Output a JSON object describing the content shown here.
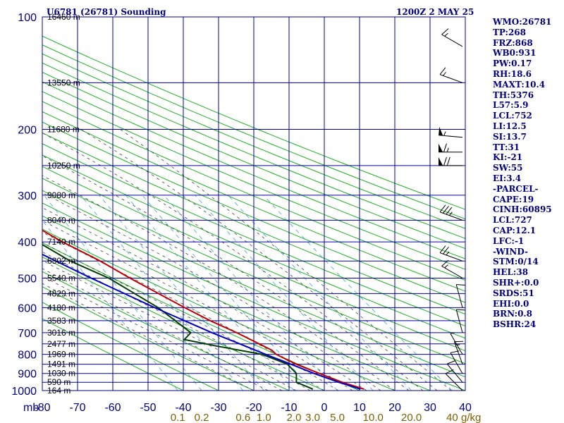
{
  "chart_data": {
    "type": "line",
    "title": "U6781 (26781) Sounding",
    "time_label": "1200Z  2 MAY 25",
    "x_axis": {
      "unit_label": "mb",
      "ticks": [
        -80,
        -70,
        -60,
        -50,
        -40,
        -30,
        -20,
        -10,
        0,
        10,
        20,
        30,
        40
      ],
      "tick_labels": [
        "-80",
        "-70",
        "-60",
        "-50",
        "-40",
        "-30",
        "-20",
        "-10",
        "0",
        "10",
        "20",
        "30",
        "40"
      ],
      "range": [
        -80,
        40
      ]
    },
    "y_axis": {
      "scale": "log",
      "range": [
        100,
        1000
      ],
      "ticks": [
        100,
        200,
        300,
        400,
        500,
        600,
        700,
        800,
        900,
        1000
      ],
      "tick_labels": [
        "100",
        "200",
        "300",
        "400",
        "500",
        "600",
        "700",
        "800",
        "900",
        "1000"
      ]
    },
    "height_labels": [
      {
        "p": 100,
        "label": "16460 m"
      },
      {
        "p": 150,
        "label": "13550 m"
      },
      {
        "p": 200,
        "label": "11680 m"
      },
      {
        "p": 250,
        "label": "10250 m"
      },
      {
        "p": 300,
        "label": "9080 m"
      },
      {
        "p": 350,
        "label": "8040 m"
      },
      {
        "p": 400,
        "label": "7140 m"
      },
      {
        "p": 450,
        "label": "6302 m"
      },
      {
        "p": 500,
        "label": "5540 m"
      },
      {
        "p": 550,
        "label": "4829 m"
      },
      {
        "p": 600,
        "label": "4180 m"
      },
      {
        "p": 650,
        "label": "3583 m"
      },
      {
        "p": 700,
        "label": "3016 m"
      },
      {
        "p": 750,
        "label": "2477 m"
      },
      {
        "p": 800,
        "label": "1969 m"
      },
      {
        "p": 850,
        "label": "1491 m"
      },
      {
        "p": 900,
        "label": "1030 m"
      },
      {
        "p": 950,
        "label": "590 m"
      },
      {
        "p": 1000,
        "label": "164 m"
      }
    ],
    "mixing_ratio_labels": [
      {
        "w": 0.1,
        "label": "0.1"
      },
      {
        "w": 0.2,
        "label": "0.2"
      },
      {
        "w": 0.6,
        "label": "0.6"
      },
      {
        "w": 1.0,
        "label": "1.0"
      },
      {
        "w": 2.0,
        "label": "2.0"
      },
      {
        "w": 3.0,
        "label": "3.0"
      },
      {
        "w": 5.0,
        "label": "5.0"
      },
      {
        "w": 10.0,
        "label": "10.0"
      },
      {
        "w": 20.0,
        "label": "20.0"
      },
      {
        "w": 40.0,
        "label": "40"
      }
    ],
    "mixing_ratio_unit": "g/kg",
    "series": [
      {
        "key": "temperature",
        "color": "#c00000",
        "points": [
          {
            "p": 991,
            "t": 11.5
          },
          {
            "p": 950,
            "t": 6.5
          },
          {
            "p": 900,
            "t": 1.5
          },
          {
            "p": 850,
            "t": -3.5
          },
          {
            "p": 800,
            "t": -7.5
          },
          {
            "p": 780,
            "t": -8.0
          },
          {
            "p": 750,
            "t": -10.5
          },
          {
            "p": 700,
            "t": -15.0
          },
          {
            "p": 650,
            "t": -20.5
          },
          {
            "p": 600,
            "t": -25.5
          },
          {
            "p": 550,
            "t": -30.5
          },
          {
            "p": 500,
            "t": -36.0
          },
          {
            "p": 450,
            "t": -41.5
          },
          {
            "p": 400,
            "t": -49.0
          },
          {
            "p": 350,
            "t": -56.0
          },
          {
            "p": 300,
            "t": -62.0
          },
          {
            "p": 265,
            "t": -63.5
          },
          {
            "p": 250,
            "t": -62.0
          },
          {
            "p": 230,
            "t": -59.0
          },
          {
            "p": 200,
            "t": -54.0
          },
          {
            "p": 170,
            "t": -48.0
          },
          {
            "p": 150,
            "t": -46.0
          },
          {
            "p": 120,
            "t": -43.5
          },
          {
            "p": 100,
            "t": -40.5
          }
        ]
      },
      {
        "key": "dewpoint",
        "color": "#004000",
        "points": [
          {
            "p": 991,
            "t": -3.0
          },
          {
            "p": 950,
            "t": -6.5
          },
          {
            "p": 900,
            "t": -5.0
          },
          {
            "p": 850,
            "t": -6.0
          },
          {
            "p": 800,
            "t": -11.5
          },
          {
            "p": 760,
            "t": -23.0
          },
          {
            "p": 730,
            "t": -31.0
          },
          {
            "p": 700,
            "t": -28.0
          },
          {
            "p": 600,
            "t": -33.0
          },
          {
            "p": 500,
            "t": -42.0
          },
          {
            "p": 450,
            "t": -50.0
          },
          {
            "p": 400,
            "t": -56.0
          },
          {
            "p": 300,
            "t": -69.0
          },
          {
            "p": 270,
            "t": -73.0
          },
          {
            "p": 230,
            "t": -73.0
          },
          {
            "p": 200,
            "t": -71.0
          },
          {
            "p": 170,
            "t": -72.0
          },
          {
            "p": 150,
            "t": -74.0
          },
          {
            "p": 120,
            "t": -76.0
          },
          {
            "p": 100,
            "t": -77.0
          }
        ]
      },
      {
        "key": "parcel",
        "color": "#0000c0",
        "points": [
          {
            "p": 991,
            "t": 10.5
          },
          {
            "p": 950,
            "t": 5.5
          },
          {
            "p": 900,
            "t": 0.0
          },
          {
            "p": 850,
            "t": -5.0
          },
          {
            "p": 800,
            "t": -10.5
          },
          {
            "p": 750,
            "t": -16.0
          },
          {
            "p": 700,
            "t": -22.0
          },
          {
            "p": 600,
            "t": -34.0
          },
          {
            "p": 500,
            "t": -47.0
          },
          {
            "p": 400,
            "t": -62.0
          },
          {
            "p": 300,
            "t": -80.0
          },
          {
            "p": 250,
            "t": -90.0
          }
        ]
      }
    ],
    "wind_barbs": [
      {
        "p": 1000,
        "dir": 315,
        "kt": 10
      },
      {
        "p": 950,
        "dir": 320,
        "kt": 10
      },
      {
        "p": 900,
        "dir": 330,
        "kt": 10
      },
      {
        "p": 850,
        "dir": 340,
        "kt": 15
      },
      {
        "p": 800,
        "dir": 330,
        "kt": 5
      },
      {
        "p": 700,
        "dir": 345,
        "kt": 10
      },
      {
        "p": 600,
        "dir": 345,
        "kt": 10
      },
      {
        "p": 500,
        "dir": 300,
        "kt": 15
      },
      {
        "p": 450,
        "dir": 290,
        "kt": 25
      },
      {
        "p": 350,
        "dir": 290,
        "kt": 35
      },
      {
        "p": 250,
        "dir": 270,
        "kt": 70
      },
      {
        "p": 230,
        "dir": 270,
        "kt": 65
      },
      {
        "p": 210,
        "dir": 275,
        "kt": 55
      },
      {
        "p": 150,
        "dir": 290,
        "kt": 15
      },
      {
        "p": 120,
        "dir": 300,
        "kt": 15
      }
    ],
    "indices": [
      "WMO:26781",
      "TP:268",
      "FRZ:868",
      "WB0:931",
      "PW:0.17",
      "RH:18.6",
      "MAXT:10.4",
      "TH:5376",
      "L57:5.9",
      "LCL:752",
      "LI:12.5",
      "SI:13.7",
      "TT:31",
      "KI:-21",
      "SW:55",
      "EI:3.4",
      "-PARCEL-",
      "CAPE:19",
      "CINH:60895",
      "LCL:727",
      "CAP:12.1",
      "LFC:-1",
      "-WIND-",
      "STM:0/14",
      "HEL:38",
      "SHR+:0.0",
      "SRDS:51",
      "EHI:0.0",
      "BRN:0.8",
      "BSHR:24"
    ],
    "colors": {
      "grid": "#0000a0",
      "dry_adiabat": "#20b020",
      "moist_adiabat": "#404040",
      "mixing_ratio": "#40a0d0",
      "label_navy": "#000080",
      "axis_tick_label": "#000080",
      "mixing_label": "#806000"
    }
  }
}
